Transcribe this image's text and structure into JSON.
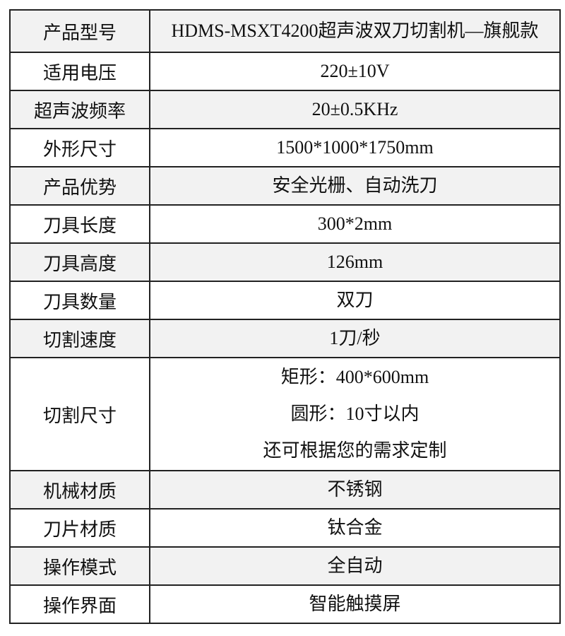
{
  "rows": [
    {
      "label": "产品型号",
      "value": [
        "HDMS-MSXT4200超声波双刀切割机—旗舰款"
      ]
    },
    {
      "label": "适用电压",
      "value": [
        "220±10V"
      ]
    },
    {
      "label": "超声波频率",
      "value": [
        "20±0.5KHz"
      ]
    },
    {
      "label": "外形尺寸",
      "value": [
        "1500*1000*1750mm"
      ]
    },
    {
      "label": "产品优势",
      "value": [
        "安全光栅、自动洗刀"
      ]
    },
    {
      "label": "刀具长度",
      "value": [
        "300*2mm"
      ]
    },
    {
      "label": "刀具高度",
      "value": [
        "126mm"
      ]
    },
    {
      "label": "刀具数量",
      "value": [
        "双刀"
      ]
    },
    {
      "label": "切割速度",
      "value": [
        "1刀/秒"
      ]
    },
    {
      "label": "切割尺寸",
      "value": [
        "矩形：400*600mm",
        "圆形：10寸以内",
        "还可根据您的需求定制"
      ]
    },
    {
      "label": "机械材质",
      "value": [
        "不锈钢"
      ]
    },
    {
      "label": "刀片材质",
      "value": [
        "钛合金"
      ]
    },
    {
      "label": "操作模式",
      "value": [
        "全自动"
      ]
    },
    {
      "label": "操作界面",
      "value": [
        "智能触摸屏"
      ]
    }
  ],
  "colors": {
    "odd_row_bg": "#f2f2f2",
    "even_row_bg": "#ffffff",
    "border": "#222222"
  }
}
